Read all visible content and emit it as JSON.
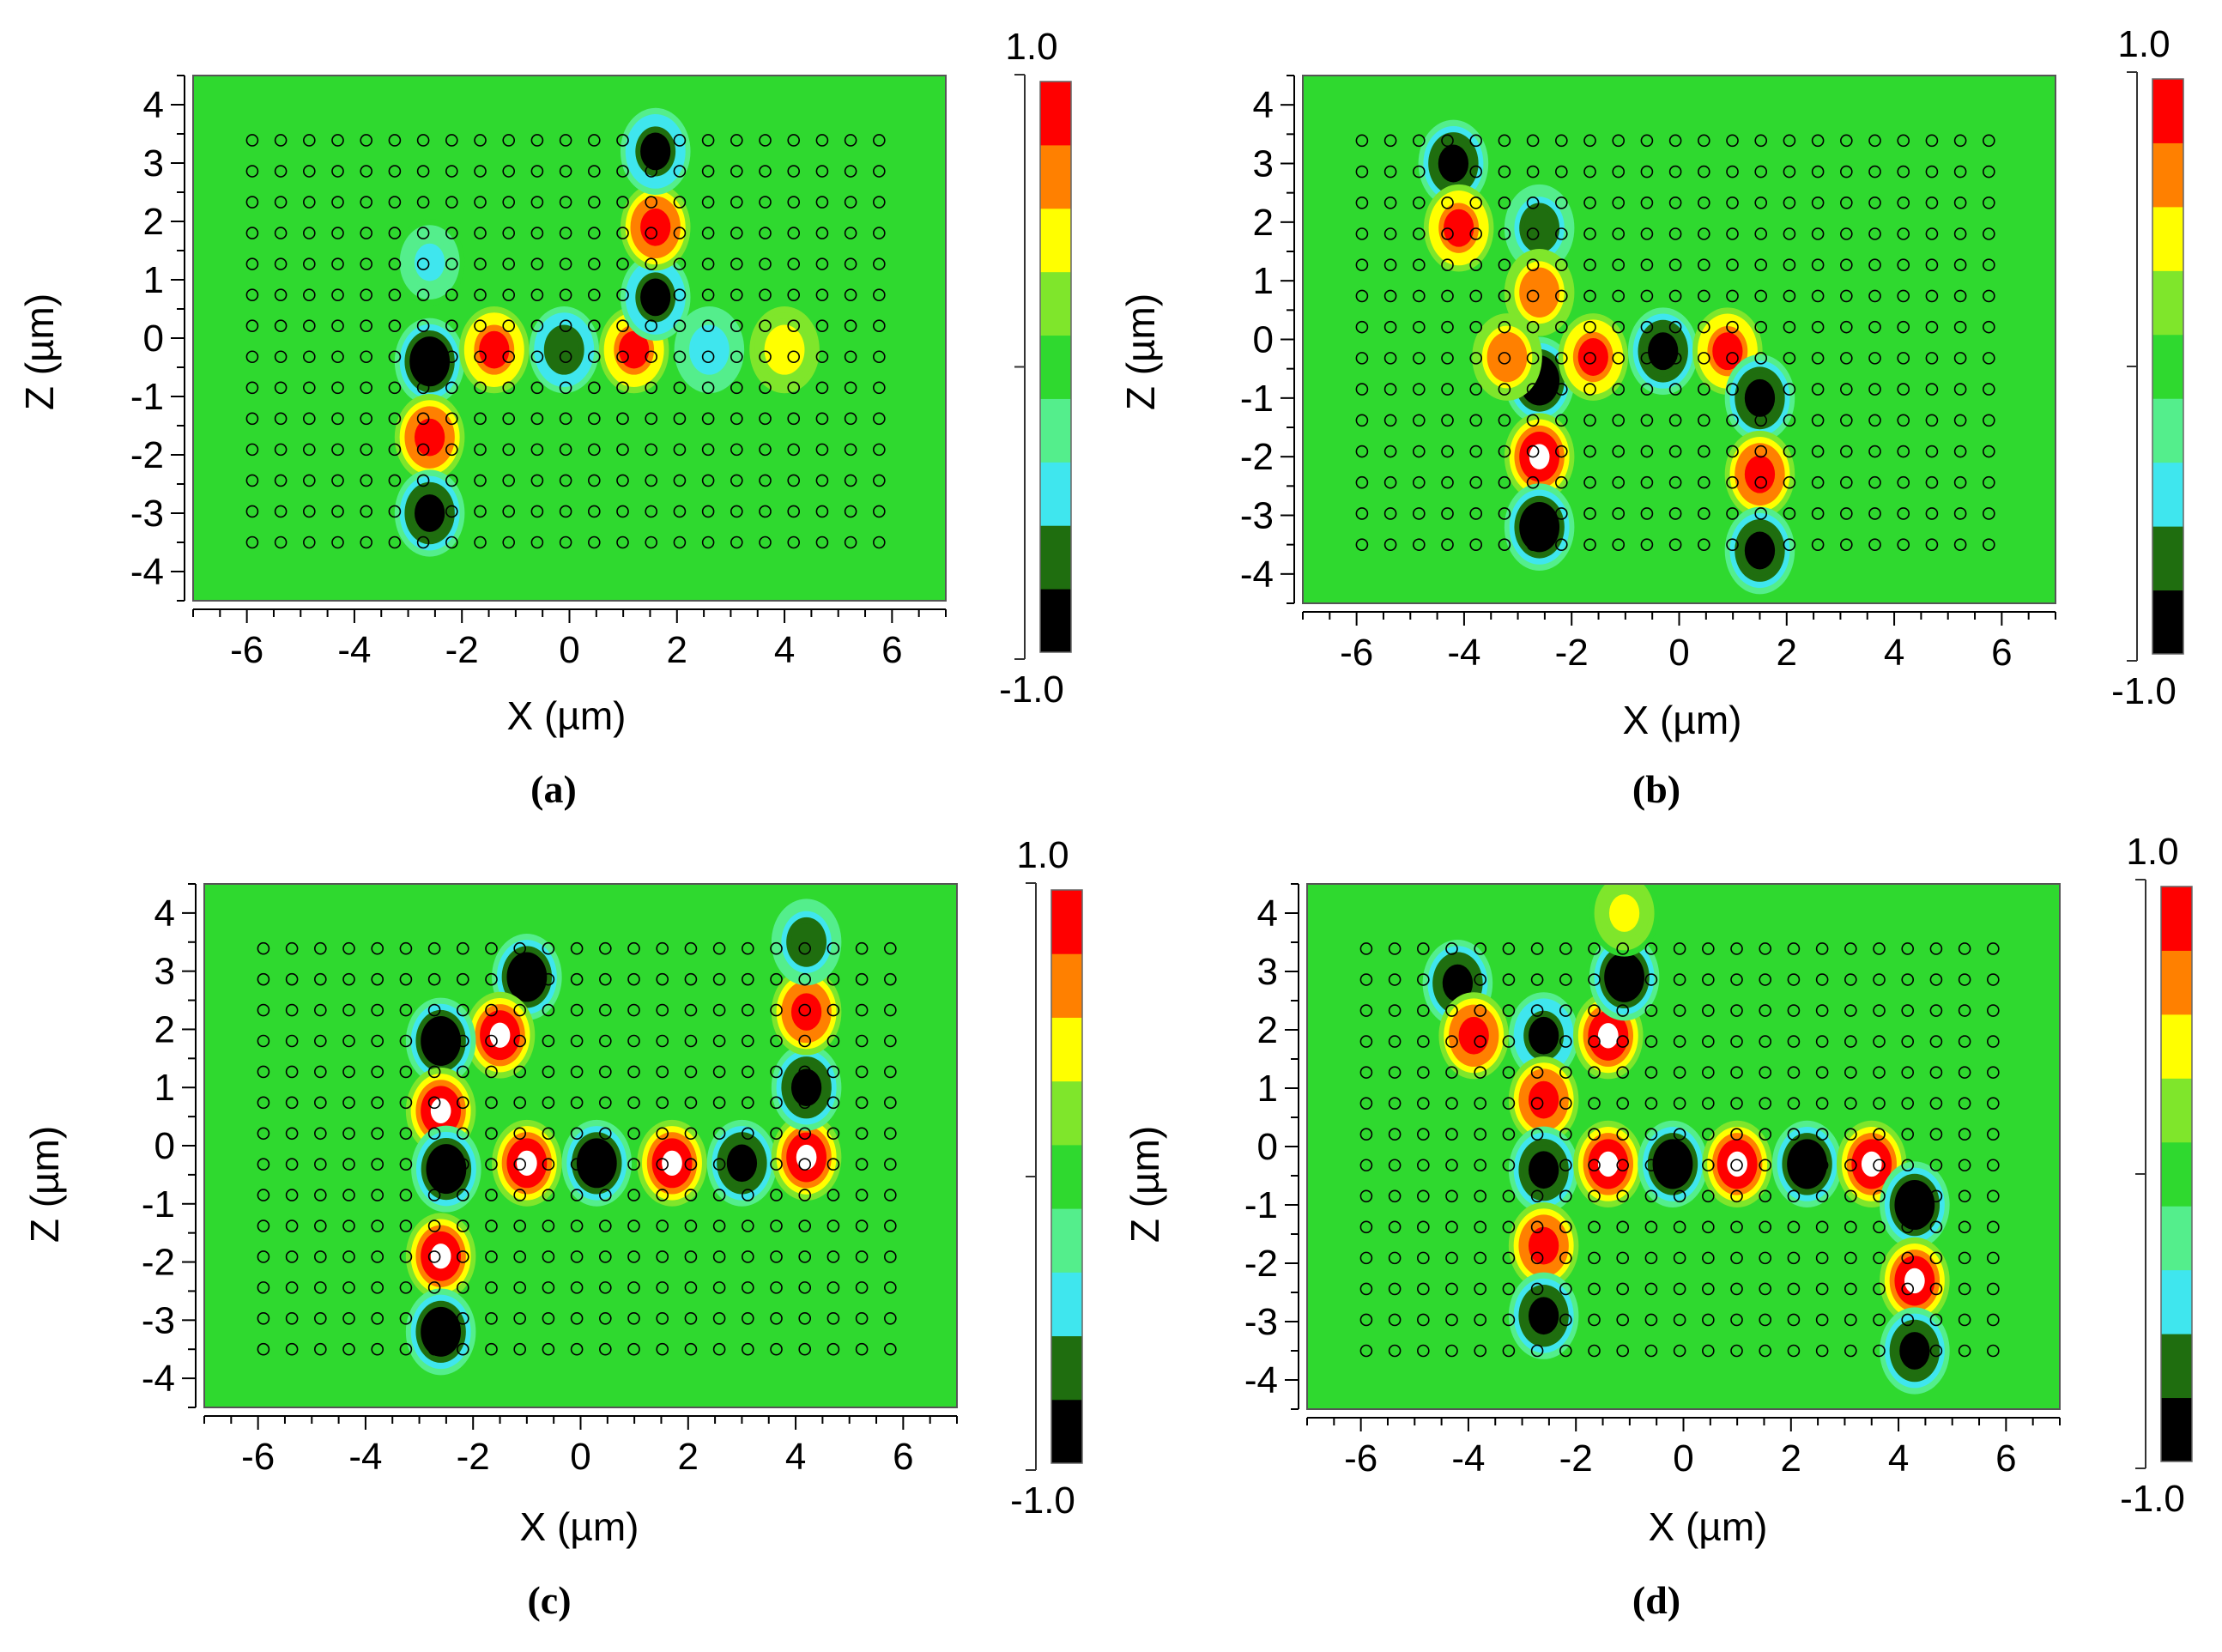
{
  "figure": {
    "panels": [
      {
        "id": "a",
        "caption": "(a)"
      },
      {
        "id": "b",
        "caption": "(b)"
      },
      {
        "id": "c",
        "caption": "(c)"
      },
      {
        "id": "d",
        "caption": "(d)"
      }
    ]
  },
  "chart_data": [
    {
      "type": "heatmap",
      "panel": "a",
      "xlabel": "X (µm)",
      "ylabel": "Z (µm)",
      "xlim": [
        -7,
        7
      ],
      "ylim": [
        -4.5,
        4.5
      ],
      "xticks": [
        -6,
        -4,
        -2,
        0,
        2,
        4,
        6
      ],
      "yticks": [
        4,
        3,
        2,
        1,
        0,
        -1,
        -2,
        -3,
        -4
      ],
      "colorbar": {
        "max_label": "1.0",
        "min_label": "-1.0",
        "levels": [
          "#000000",
          "#1f6e0f",
          "#3fe6ee",
          "#54ee8c",
          "#2fd92f",
          "#7fe62b",
          "#ffff00",
          "#ff8000",
          "#ff0000"
        ]
      },
      "background_value": 0.0,
      "lattice": {
        "x_step": 0.53,
        "z_step": 0.53,
        "x_range": [
          -5.9,
          5.9
        ],
        "z_range": [
          -3.5,
          3.5
        ]
      },
      "field_spots": [
        {
          "x": -2.6,
          "z": -0.4,
          "value": -1.0
        },
        {
          "x": -1.4,
          "z": -0.2,
          "value": 0.85
        },
        {
          "x": -0.1,
          "z": -0.2,
          "value": -0.75
        },
        {
          "x": 1.2,
          "z": -0.2,
          "value": 0.85
        },
        {
          "x": 2.6,
          "z": -0.2,
          "value": -0.45
        },
        {
          "x": 4.0,
          "z": -0.2,
          "value": 0.5
        },
        {
          "x": -2.6,
          "z": -1.7,
          "value": 0.9
        },
        {
          "x": -2.6,
          "z": -3.0,
          "value": -0.9
        },
        {
          "x": -2.6,
          "z": 1.3,
          "value": -0.4
        },
        {
          "x": 1.6,
          "z": 0.7,
          "value": -0.85
        },
        {
          "x": 1.6,
          "z": 1.9,
          "value": 0.9
        },
        {
          "x": 1.6,
          "z": 3.2,
          "value": -0.8
        }
      ]
    },
    {
      "type": "heatmap",
      "panel": "b",
      "xlabel": "X (µm)",
      "ylabel": "Z (µm)",
      "xlim": [
        -7,
        7
      ],
      "ylim": [
        -4.5,
        4.5
      ],
      "xticks": [
        -6,
        -4,
        -2,
        0,
        2,
        4,
        6
      ],
      "yticks": [
        4,
        3,
        2,
        1,
        0,
        -1,
        -2,
        -3,
        -4
      ],
      "colorbar": {
        "max_label": "1.0",
        "min_label": "-1.0",
        "levels": [
          "#000000",
          "#1f6e0f",
          "#3fe6ee",
          "#54ee8c",
          "#2fd92f",
          "#7fe62b",
          "#ffff00",
          "#ff8000",
          "#ff0000"
        ]
      },
      "background_value": 0.0,
      "lattice": {
        "x_step": 0.53,
        "z_step": 0.53,
        "x_range": [
          -5.9,
          5.9
        ],
        "z_range": [
          -3.5,
          3.5
        ]
      },
      "field_spots": [
        {
          "x": -4.2,
          "z": 3.0,
          "value": -0.9
        },
        {
          "x": -4.1,
          "z": 1.9,
          "value": 0.8
        },
        {
          "x": -2.6,
          "z": 1.9,
          "value": -0.7
        },
        {
          "x": -2.6,
          "z": 0.8,
          "value": 0.7
        },
        {
          "x": -2.6,
          "z": -0.7,
          "value": -1.0
        },
        {
          "x": -3.2,
          "z": -0.3,
          "value": 0.7
        },
        {
          "x": -1.6,
          "z": -0.3,
          "value": 0.85
        },
        {
          "x": -0.3,
          "z": -0.2,
          "value": -0.9
        },
        {
          "x": 0.9,
          "z": -0.2,
          "value": 0.85
        },
        {
          "x": 1.5,
          "z": -1.0,
          "value": -0.9
        },
        {
          "x": -2.6,
          "z": -2.0,
          "value": 1.0
        },
        {
          "x": -2.6,
          "z": -3.2,
          "value": -1.0
        },
        {
          "x": 1.5,
          "z": -2.3,
          "value": 0.9
        },
        {
          "x": 1.5,
          "z": -3.6,
          "value": -0.9
        }
      ]
    },
    {
      "type": "heatmap",
      "panel": "c",
      "xlabel": "X (µm)",
      "ylabel": "Z (µm)",
      "xlim": [
        -7,
        7
      ],
      "ylim": [
        -4.5,
        4.5
      ],
      "xticks": [
        -6,
        -4,
        -2,
        0,
        2,
        4,
        6
      ],
      "yticks": [
        4,
        3,
        2,
        1,
        0,
        -1,
        -2,
        -3,
        -4
      ],
      "colorbar": {
        "max_label": "1.0",
        "min_label": "-1.0",
        "levels": [
          "#000000",
          "#1f6e0f",
          "#3fe6ee",
          "#54ee8c",
          "#2fd92f",
          "#7fe62b",
          "#ffff00",
          "#ff8000",
          "#ff0000"
        ]
      },
      "background_value": 0.0,
      "lattice": {
        "x_step": 0.53,
        "z_step": 0.53,
        "x_range": [
          -5.9,
          5.9
        ],
        "z_range": [
          -3.5,
          3.5
        ]
      },
      "field_spots": [
        {
          "x": -1.0,
          "z": 2.9,
          "value": -1.0
        },
        {
          "x": -1.5,
          "z": 1.9,
          "value": 1.0
        },
        {
          "x": -2.6,
          "z": 1.8,
          "value": -1.0
        },
        {
          "x": -2.6,
          "z": 0.6,
          "value": 1.0
        },
        {
          "x": -2.5,
          "z": -0.4,
          "value": -1.0
        },
        {
          "x": -1.0,
          "z": -0.3,
          "value": 1.0
        },
        {
          "x": 0.3,
          "z": -0.3,
          "value": -1.0
        },
        {
          "x": 1.7,
          "z": -0.3,
          "value": 1.0
        },
        {
          "x": 3.0,
          "z": -0.3,
          "value": -0.9
        },
        {
          "x": 4.2,
          "z": -0.2,
          "value": 0.95
        },
        {
          "x": 4.2,
          "z": 1.0,
          "value": -0.9
        },
        {
          "x": 4.2,
          "z": 2.3,
          "value": 0.9
        },
        {
          "x": 4.2,
          "z": 3.5,
          "value": -0.7
        },
        {
          "x": -2.6,
          "z": -1.9,
          "value": 1.0
        },
        {
          "x": -2.6,
          "z": -3.2,
          "value": -1.0
        }
      ]
    },
    {
      "type": "heatmap",
      "panel": "d",
      "xlabel": "X (µm)",
      "ylabel": "Z (µm)",
      "xlim": [
        -7,
        7
      ],
      "ylim": [
        -4.5,
        4.5
      ],
      "xticks": [
        -6,
        -4,
        -2,
        0,
        2,
        4,
        6
      ],
      "yticks": [
        4,
        3,
        2,
        1,
        0,
        -1,
        -2,
        -3,
        -4
      ],
      "colorbar": {
        "max_label": "1.0",
        "min_label": "-1.0",
        "levels": [
          "#000000",
          "#1f6e0f",
          "#3fe6ee",
          "#54ee8c",
          "#2fd92f",
          "#7fe62b",
          "#ffff00",
          "#ff8000",
          "#ff0000"
        ]
      },
      "background_value": 0.0,
      "lattice": {
        "x_step": 0.53,
        "z_step": 0.53,
        "x_range": [
          -5.9,
          5.9
        ],
        "z_range": [
          -3.5,
          3.5
        ]
      },
      "field_spots": [
        {
          "x": -4.2,
          "z": 2.8,
          "value": -0.9
        },
        {
          "x": -3.9,
          "z": 1.9,
          "value": 0.9
        },
        {
          "x": -2.6,
          "z": 1.9,
          "value": -0.85
        },
        {
          "x": -1.4,
          "z": 1.9,
          "value": 1.0
        },
        {
          "x": -1.1,
          "z": 2.9,
          "value": -1.0
        },
        {
          "x": -2.6,
          "z": 0.8,
          "value": 0.9
        },
        {
          "x": -2.6,
          "z": -0.4,
          "value": -0.9
        },
        {
          "x": -1.4,
          "z": -0.3,
          "value": 1.0
        },
        {
          "x": -0.2,
          "z": -0.3,
          "value": -0.95
        },
        {
          "x": 1.0,
          "z": -0.3,
          "value": 1.0
        },
        {
          "x": 2.3,
          "z": -0.3,
          "value": -0.95
        },
        {
          "x": 3.5,
          "z": -0.3,
          "value": 0.95
        },
        {
          "x": 4.3,
          "z": -1.0,
          "value": -0.95
        },
        {
          "x": 4.3,
          "z": -2.3,
          "value": 0.95
        },
        {
          "x": 4.3,
          "z": -3.5,
          "value": -0.9
        },
        {
          "x": -2.6,
          "z": -1.7,
          "value": 0.9
        },
        {
          "x": -2.6,
          "z": -2.9,
          "value": -0.9
        },
        {
          "x": -1.1,
          "z": 4.0,
          "value": 0.4
        }
      ]
    }
  ]
}
